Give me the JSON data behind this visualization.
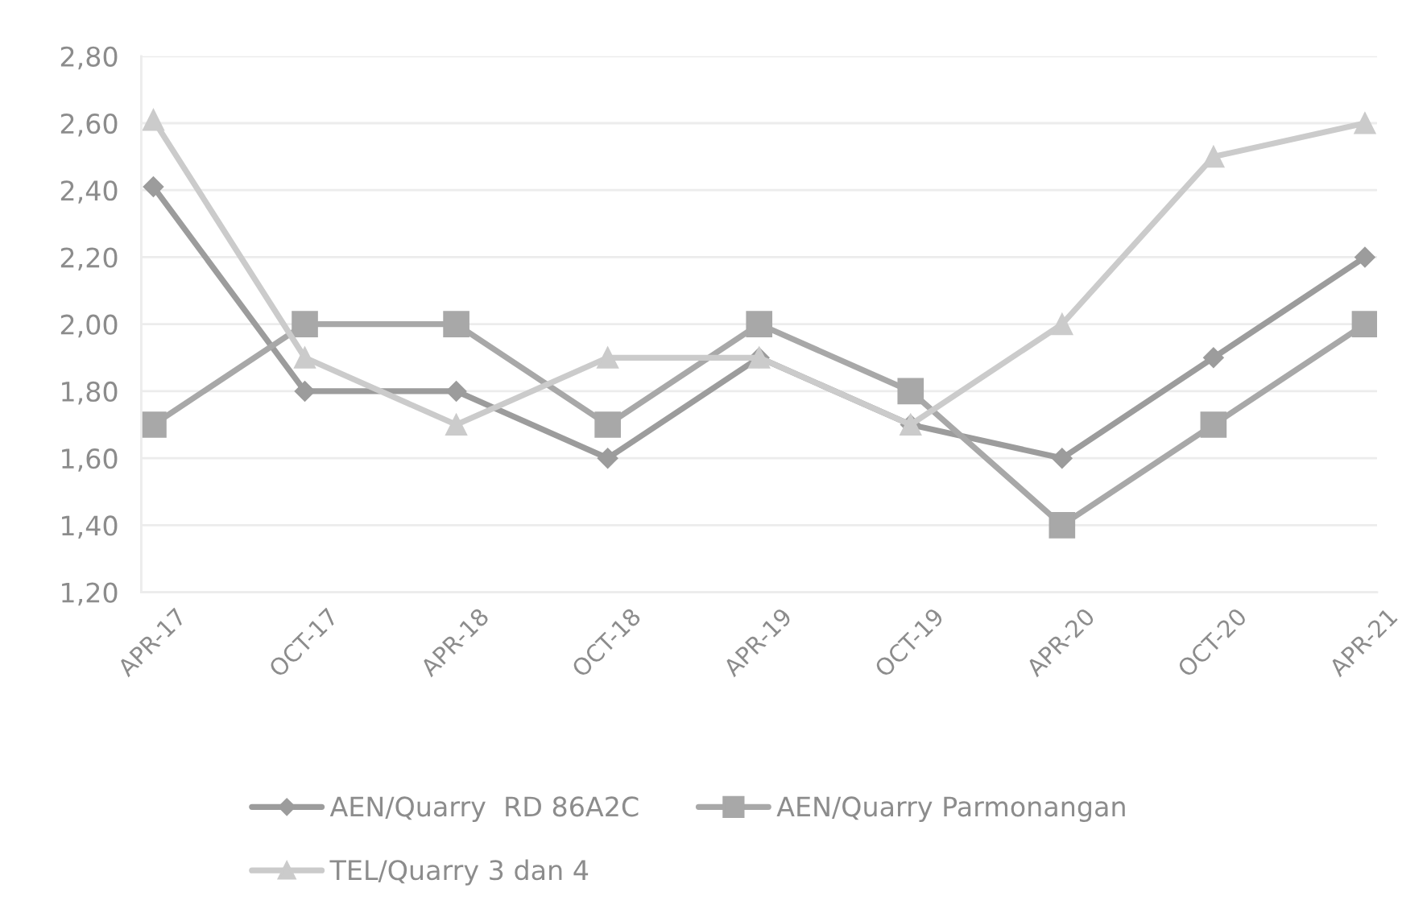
{
  "chart_data": {
    "type": "line",
    "categories": [
      "APR-17",
      "OCT-17",
      "APR-18",
      "OCT-18",
      "APR-19",
      "OCT-19",
      "APR-20",
      "OCT-20",
      "APR-21"
    ],
    "series": [
      {
        "name": "AEN/Quarry  RD 86A2C",
        "color": "#9c9c9c",
        "marker": "diamond",
        "values": [
          2.41,
          1.8,
          1.8,
          1.6,
          1.9,
          1.7,
          1.6,
          1.9,
          2.2
        ]
      },
      {
        "name": "AEN/Quarry Parmonangan",
        "color": "#a8a8a8",
        "marker": "square",
        "values": [
          1.7,
          2.0,
          2.0,
          1.7,
          2.0,
          1.8,
          1.4,
          1.7,
          2.0
        ]
      },
      {
        "name": "TEL/Quarry 3 dan 4",
        "color": "#cbcbcb",
        "marker": "triangle",
        "values": [
          2.61,
          1.9,
          1.7,
          1.9,
          1.9,
          1.7,
          2.0,
          2.5,
          2.6
        ]
      }
    ],
    "ylim": [
      1.2,
      2.8
    ],
    "yticks": [
      {
        "value": 1.2,
        "label": "1,20"
      },
      {
        "value": 1.4,
        "label": "1,40"
      },
      {
        "value": 1.6,
        "label": "1,60"
      },
      {
        "value": 1.8,
        "label": "1,80"
      },
      {
        "value": 2.0,
        "label": "2,00"
      },
      {
        "value": 2.2,
        "label": "2,20"
      },
      {
        "value": 2.4,
        "label": "2,40"
      },
      {
        "value": 2.6,
        "label": "2,60"
      },
      {
        "value": 2.8,
        "label": "2,80"
      }
    ],
    "grid": "y",
    "legend": "bottom",
    "line_style": "solid"
  }
}
